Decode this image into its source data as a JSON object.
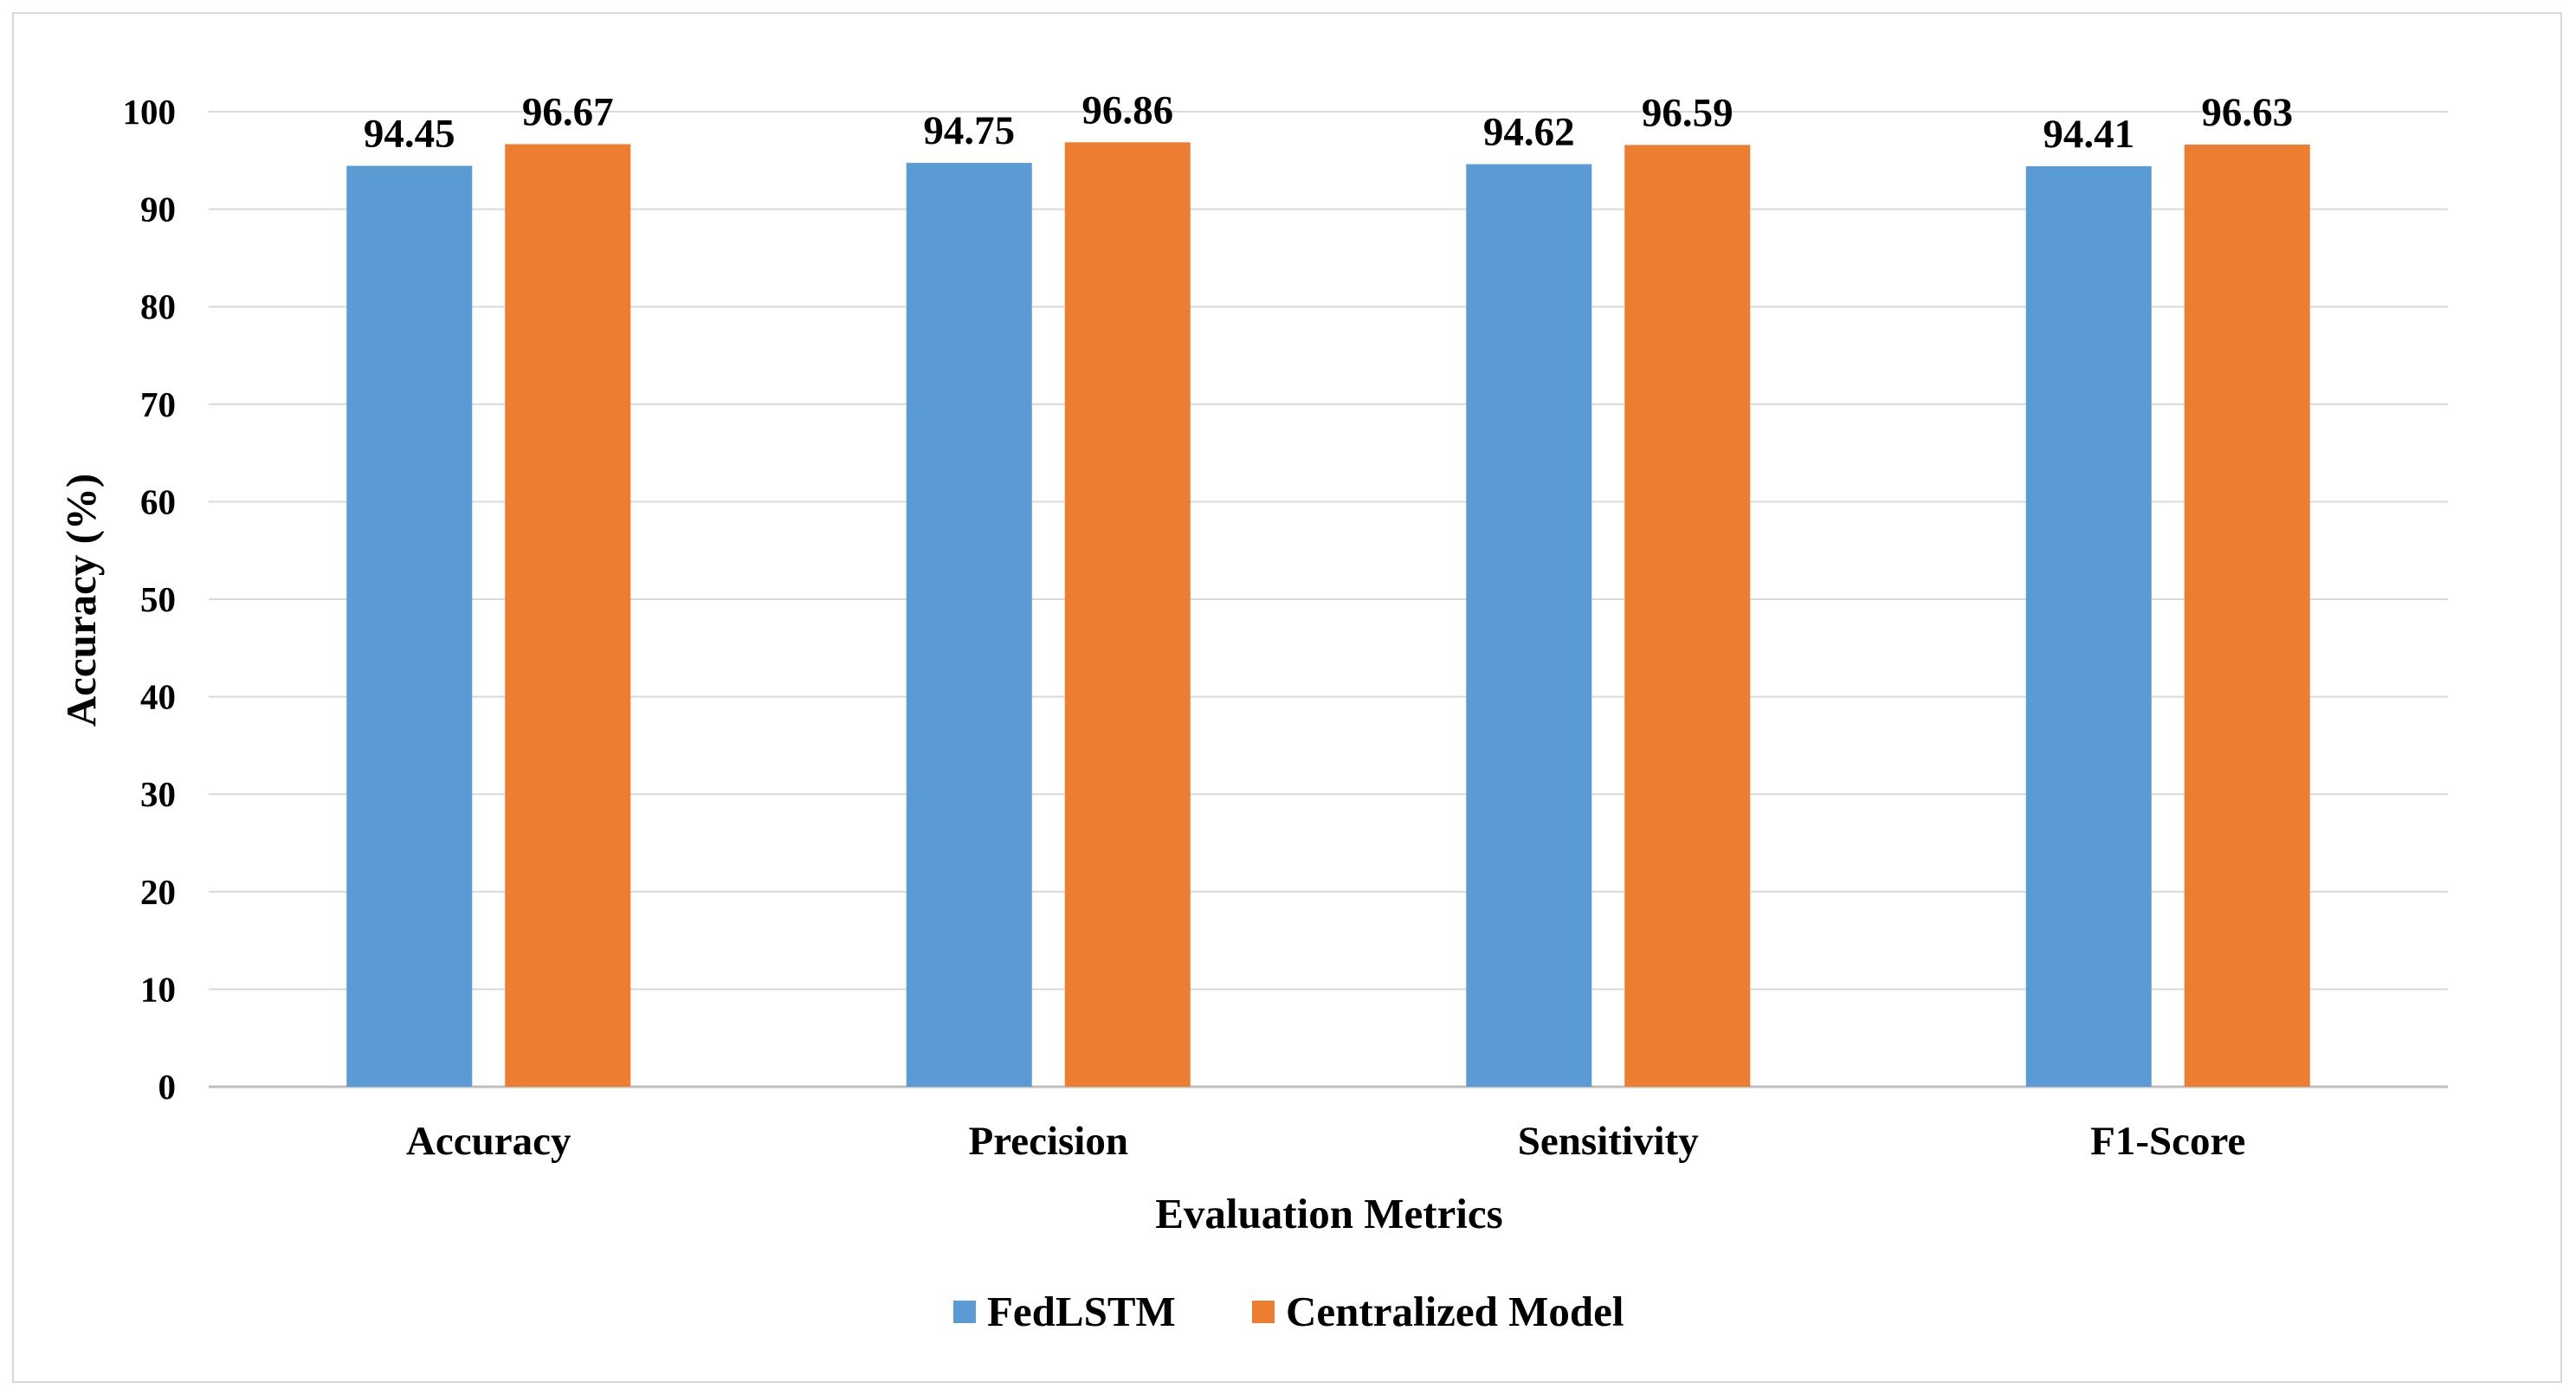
{
  "chart_data": {
    "type": "bar",
    "title": "",
    "xlabel": "Evaluation Metrics",
    "ylabel": "Accuracy (%)",
    "ylim": [
      0,
      100
    ],
    "yticks": [
      0,
      10,
      20,
      30,
      40,
      50,
      60,
      70,
      80,
      90,
      100
    ],
    "grid": true,
    "legend_position": "bottom",
    "categories": [
      "Accuracy",
      "Precision",
      "Sensitivity",
      "F1-Score"
    ],
    "series": [
      {
        "name": "FedLSTM",
        "color": "#5b9bd5",
        "values": [
          94.45,
          94.75,
          94.62,
          94.41
        ],
        "labels": [
          "94.45",
          "94.75",
          "94.62",
          "94.41"
        ]
      },
      {
        "name": "Centralized Model",
        "color": "#ed7d31",
        "values": [
          96.67,
          96.86,
          96.59,
          96.63
        ],
        "labels": [
          "96.67",
          "96.86",
          "96.59",
          "96.63"
        ]
      }
    ]
  }
}
